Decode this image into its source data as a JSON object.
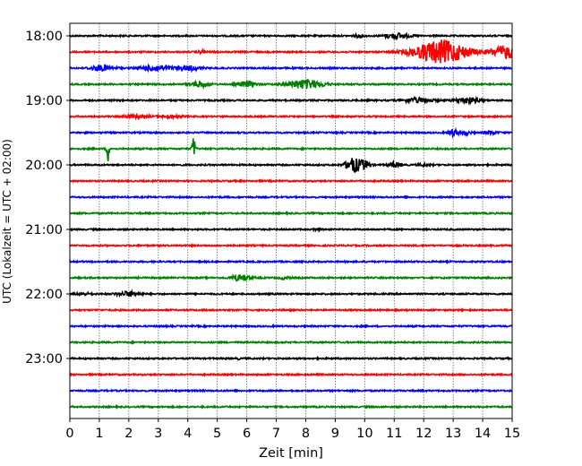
{
  "chart_data": {
    "type": "line",
    "title": "",
    "xlabel": "Zeit  [min]",
    "ylabel": "UTC (Lokalzeit = UTC + 02:00)",
    "xlim": [
      0,
      15
    ],
    "xticks": [
      "0",
      "1",
      "2",
      "3",
      "4",
      "5",
      "6",
      "7",
      "8",
      "9",
      "10",
      "11",
      "12",
      "13",
      "14",
      "15"
    ],
    "yticks": [
      "18:00",
      "19:00",
      "20:00",
      "21:00",
      "22:00",
      "23:00"
    ],
    "grid": "vertical dotted",
    "trace_interval_min": 15,
    "trace_count": 24,
    "trace_colors": [
      "#000000",
      "#ff0000",
      "#0000ff",
      "#008000"
    ],
    "events": [
      {
        "trace": 0,
        "t": 9.8,
        "w": 0.2,
        "a": 0.15
      },
      {
        "trace": 0,
        "t": 11.1,
        "w": 0.4,
        "a": 0.3
      },
      {
        "trace": 1,
        "t": 4.5,
        "w": 0.15,
        "a": 0.15
      },
      {
        "trace": 1,
        "t": 12.6,
        "w": 0.9,
        "a": 1.3
      },
      {
        "trace": 1,
        "t": 14.8,
        "w": 0.5,
        "a": 0.7
      },
      {
        "trace": 2,
        "t": 1.1,
        "w": 0.4,
        "a": 0.3
      },
      {
        "trace": 2,
        "t": 2.9,
        "w": 0.5,
        "a": 0.3
      },
      {
        "trace": 2,
        "t": 4.0,
        "w": 0.4,
        "a": 0.25
      },
      {
        "trace": 3,
        "t": 4.4,
        "w": 0.3,
        "a": 0.3
      },
      {
        "trace": 3,
        "t": 6.0,
        "w": 0.3,
        "a": 0.3
      },
      {
        "trace": 3,
        "t": 8.0,
        "w": 0.6,
        "a": 0.5
      },
      {
        "trace": 4,
        "t": 11.8,
        "w": 0.5,
        "a": 0.25
      },
      {
        "trace": 4,
        "t": 13.5,
        "w": 0.4,
        "a": 0.3
      },
      {
        "trace": 5,
        "t": 2.2,
        "w": 0.4,
        "a": 0.15
      },
      {
        "trace": 5,
        "t": 3.4,
        "w": 0.4,
        "a": 0.12
      },
      {
        "trace": 6,
        "t": 13.0,
        "w": 0.15,
        "a": 0.35
      },
      {
        "trace": 6,
        "t": 13.4,
        "w": 0.2,
        "a": 0.2
      },
      {
        "trace": 6,
        "t": 14.3,
        "w": 0.2,
        "a": 0.2
      },
      {
        "trace": 7,
        "t": 1.3,
        "w": 0.05,
        "a": 1.4
      },
      {
        "trace": 7,
        "t": 4.2,
        "w": 0.05,
        "a": 1.5
      },
      {
        "trace": 8,
        "t": 9.6,
        "w": 0.25,
        "a": 0.8
      },
      {
        "trace": 8,
        "t": 10.0,
        "w": 0.2,
        "a": 0.45
      },
      {
        "trace": 8,
        "t": 11.0,
        "w": 0.2,
        "a": 0.3
      },
      {
        "trace": 8,
        "t": 12.0,
        "w": 0.2,
        "a": 0.1
      },
      {
        "trace": 12,
        "t": 8.4,
        "w": 0.1,
        "a": 0.15
      },
      {
        "trace": 15,
        "t": 5.8,
        "w": 0.3,
        "a": 0.35
      },
      {
        "trace": 15,
        "t": 7.3,
        "w": 0.15,
        "a": 0.15
      },
      {
        "trace": 16,
        "t": 2.0,
        "w": 0.4,
        "a": 0.25
      },
      {
        "trace": 16,
        "t": 0.5,
        "w": 0.3,
        "a": 0.1
      },
      {
        "trace": 20,
        "t": 5.7,
        "w": 0.05,
        "a": 0.1
      }
    ]
  }
}
